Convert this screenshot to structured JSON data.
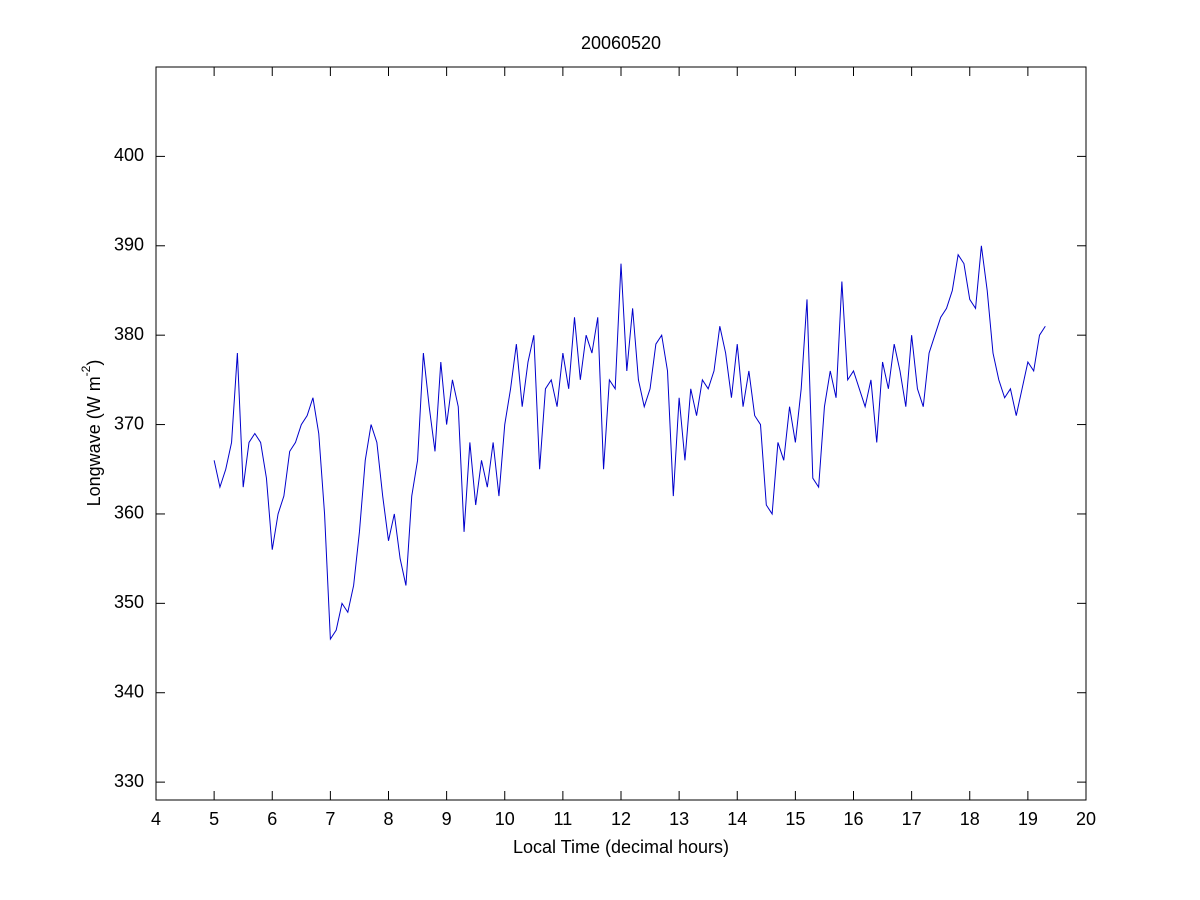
{
  "chart_data": {
    "type": "line",
    "title": "20060520",
    "x_label": "Local Time (decimal hours)",
    "y_label": {
      "text": "Longwave (W m",
      "superscript": "-2",
      "suffix": ")"
    },
    "xlim": [
      4,
      20
    ],
    "xticks": [
      4,
      5,
      6,
      7,
      8,
      9,
      10,
      11,
      12,
      13,
      14,
      15,
      16,
      17,
      18,
      19,
      20
    ],
    "ylim": [
      328,
      410
    ],
    "yticks": [
      330,
      340,
      350,
      360,
      370,
      380,
      390,
      400
    ],
    "grid": false,
    "x": [
      5.0,
      5.1,
      5.2,
      5.3,
      5.4,
      5.5,
      5.6,
      5.7,
      5.8,
      5.9,
      6.0,
      6.1,
      6.2,
      6.3,
      6.4,
      6.5,
      6.6,
      6.7,
      6.8,
      6.9,
      7.0,
      7.1,
      7.2,
      7.3,
      7.4,
      7.5,
      7.6,
      7.7,
      7.8,
      7.9,
      8.0,
      8.1,
      8.2,
      8.3,
      8.4,
      8.5,
      8.6,
      8.7,
      8.8,
      8.9,
      9.0,
      9.1,
      9.2,
      9.3,
      9.4,
      9.5,
      9.6,
      9.7,
      9.8,
      9.9,
      10.0,
      10.1,
      10.2,
      10.3,
      10.4,
      10.5,
      10.6,
      10.7,
      10.8,
      10.9,
      11.0,
      11.1,
      11.2,
      11.3,
      11.4,
      11.5,
      11.6,
      11.7,
      11.8,
      11.9,
      12.0,
      12.1,
      12.2,
      12.3,
      12.4,
      12.5,
      12.6,
      12.7,
      12.8,
      12.9,
      13.0,
      13.1,
      13.2,
      13.3,
      13.4,
      13.5,
      13.6,
      13.7,
      13.8,
      13.9,
      14.0,
      14.1,
      14.2,
      14.3,
      14.4,
      14.5,
      14.6,
      14.7,
      14.8,
      14.9,
      15.0,
      15.1,
      15.2,
      15.3,
      15.4,
      15.5,
      15.6,
      15.7,
      15.8,
      15.9,
      16.0,
      16.1,
      16.2,
      16.3,
      16.4,
      16.5,
      16.6,
      16.7,
      16.8,
      16.9,
      17.0,
      17.1,
      17.2,
      17.3,
      17.4,
      17.5,
      17.6,
      17.7,
      17.8,
      17.9,
      18.0,
      18.1,
      18.2,
      18.3,
      18.4,
      18.5,
      18.6,
      18.7,
      18.8,
      18.9,
      19.0,
      19.1,
      19.2,
      19.3
    ],
    "series": [
      {
        "color": "#0000cc",
        "values": [
          366,
          363,
          365,
          368,
          378,
          363,
          368,
          369,
          368,
          364,
          356,
          360,
          362,
          367,
          368,
          370,
          371,
          373,
          369,
          360,
          346,
          347,
          350,
          349,
          352,
          358,
          366,
          370,
          368,
          362,
          357,
          360,
          355,
          352,
          362,
          366,
          378,
          372,
          367,
          377,
          370,
          375,
          372,
          358,
          368,
          361,
          366,
          363,
          368,
          362,
          370,
          374,
          379,
          372,
          377,
          380,
          365,
          374,
          375,
          372,
          378,
          374,
          382,
          375,
          380,
          378,
          382,
          365,
          375,
          374,
          388,
          376,
          383,
          375,
          372,
          374,
          379,
          380,
          376,
          362,
          373,
          366,
          374,
          371,
          375,
          374,
          376,
          381,
          378,
          373,
          379,
          372,
          376,
          371,
          370,
          361,
          360,
          368,
          366,
          372,
          368,
          374,
          384,
          364,
          363,
          372,
          376,
          373,
          386,
          375,
          376,
          374,
          372,
          375,
          368,
          377,
          374,
          379,
          376,
          372,
          380,
          374,
          372,
          378,
          380,
          382,
          383,
          385,
          389,
          388,
          384,
          383,
          390,
          385,
          378,
          375,
          373,
          374,
          371,
          374,
          377,
          376,
          380,
          381
        ]
      }
    ]
  }
}
